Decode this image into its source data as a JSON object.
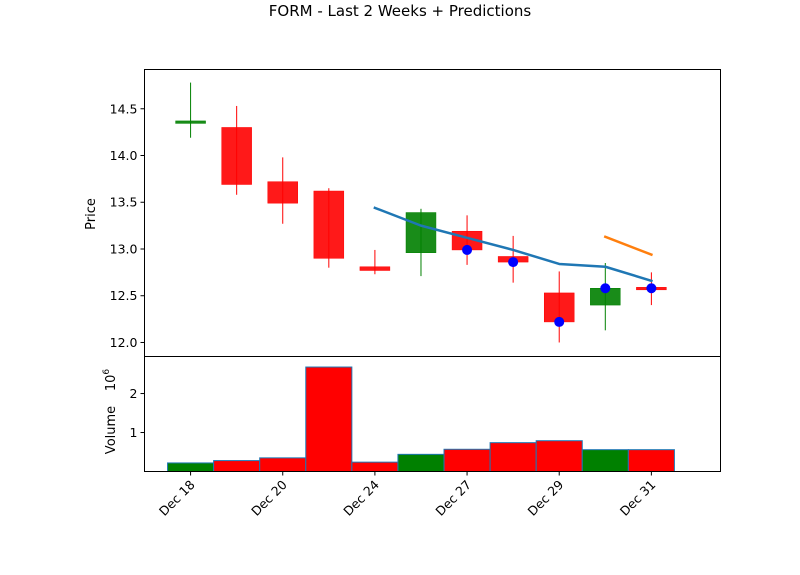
{
  "chart_data": {
    "type": "candlestick",
    "title": "FORM - Last 2 Weeks + Predictions",
    "price_axis": {
      "ylabel": "Price",
      "ylim": [
        11.85,
        14.92
      ],
      "ticks": [
        12.0,
        12.5,
        13.0,
        13.5,
        14.0,
        14.5
      ],
      "tick_labels": [
        "12.0",
        "12.5",
        "13.0",
        "13.5",
        "14.0",
        "14.5"
      ]
    },
    "volume_axis": {
      "ylabel": "Volume",
      "exponent_label": "1e6",
      "ylim": [
        0,
        2.95
      ],
      "ticks": [
        1,
        2
      ],
      "tick_labels": [
        "1",
        "2"
      ]
    },
    "x_tick_labels": [
      "Dec 18",
      "Dec 20",
      "Dec 24",
      "Dec 27",
      "Dec 29",
      "Dec 31"
    ],
    "x_tick_positions": [
      0,
      2,
      4,
      6,
      8,
      10
    ],
    "xlim": [
      -1.0,
      11.5
    ],
    "candles": [
      {
        "i": 0,
        "open": 14.36,
        "high": 14.78,
        "low": 14.19,
        "close": 14.37,
        "color": "#008000"
      },
      {
        "i": 1,
        "open": 14.3,
        "high": 14.53,
        "low": 13.58,
        "close": 13.69,
        "color": "#ff0000"
      },
      {
        "i": 2,
        "open": 13.72,
        "high": 13.98,
        "low": 13.27,
        "close": 13.49,
        "color": "#ff0000"
      },
      {
        "i": 3,
        "open": 13.62,
        "high": 13.65,
        "low": 12.8,
        "close": 12.9,
        "color": "#ff0000"
      },
      {
        "i": 4,
        "open": 12.81,
        "high": 12.99,
        "low": 12.73,
        "close": 12.77,
        "color": "#ff0000"
      },
      {
        "i": 5,
        "open": 12.96,
        "high": 13.43,
        "low": 12.71,
        "close": 13.39,
        "color": "#008000"
      },
      {
        "i": 6,
        "open": 13.19,
        "high": 13.36,
        "low": 12.83,
        "close": 12.99,
        "color": "#ff0000"
      },
      {
        "i": 7,
        "open": 12.92,
        "high": 13.14,
        "low": 12.64,
        "close": 12.86,
        "color": "#ff0000"
      },
      {
        "i": 8,
        "open": 12.53,
        "high": 12.76,
        "low": 12.0,
        "close": 12.22,
        "color": "#ff0000"
      },
      {
        "i": 9,
        "open": 12.4,
        "high": 12.85,
        "low": 12.13,
        "close": 12.58,
        "color": "#008000"
      },
      {
        "i": 10,
        "open": 12.59,
        "high": 12.75,
        "low": 12.4,
        "close": 12.58,
        "color": "#ff0000"
      }
    ],
    "trend_line": {
      "color": "#1f77b4",
      "points": [
        [
          4,
          13.44
        ],
        [
          5,
          13.25
        ],
        [
          6,
          13.12
        ],
        [
          7,
          12.99
        ],
        [
          8,
          12.84
        ],
        [
          9,
          12.81
        ],
        [
          10,
          12.66
        ]
      ]
    },
    "prediction_line": {
      "color": "#ff7f0e",
      "points": [
        [
          9,
          13.13
        ],
        [
          10,
          12.94
        ]
      ]
    },
    "prediction_markers": {
      "color": "#0000ff",
      "points": [
        [
          6,
          12.99
        ],
        [
          7,
          12.86
        ],
        [
          8,
          12.22
        ],
        [
          9,
          12.58
        ],
        [
          10,
          12.58
        ]
      ]
    },
    "volume": [
      {
        "i": 0,
        "value": 0.22,
        "color": "#008000"
      },
      {
        "i": 1,
        "value": 0.28,
        "color": "#ff0000"
      },
      {
        "i": 2,
        "value": 0.35,
        "color": "#ff0000"
      },
      {
        "i": 3,
        "value": 2.68,
        "color": "#ff0000"
      },
      {
        "i": 4,
        "value": 0.24,
        "color": "#ff0000"
      },
      {
        "i": 5,
        "value": 0.44,
        "color": "#008000"
      },
      {
        "i": 6,
        "value": 0.57,
        "color": "#ff0000"
      },
      {
        "i": 7,
        "value": 0.74,
        "color": "#ff0000"
      },
      {
        "i": 8,
        "value": 0.79,
        "color": "#ff0000"
      },
      {
        "i": 9,
        "value": 0.56,
        "color": "#008000"
      },
      {
        "i": 10,
        "value": 0.56,
        "color": "#ff0000"
      }
    ]
  }
}
